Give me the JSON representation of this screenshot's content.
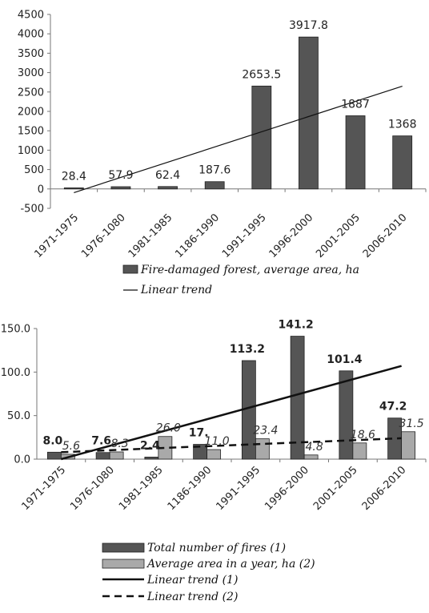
{
  "chart_data": [
    {
      "type": "bar",
      "categories": [
        "1971-1975",
        "1976-1080",
        "1981-1985",
        "1186-1990",
        "1991-1995",
        "1996-2000",
        "2001-2005",
        "2006-2010"
      ],
      "series": [
        {
          "name": "Fire-damaged forest, average area, ha",
          "values": [
            28.4,
            57.9,
            62.4,
            187.6,
            2653.5,
            3917.8,
            1887,
            1368
          ],
          "labels": [
            "28.4",
            "57.9",
            "62.4",
            "187.6",
            "2653.5",
            "3917.8",
            "1887",
            "1368"
          ],
          "color": "#555555"
        }
      ],
      "trend": {
        "name": "Linear trend",
        "from": -95,
        "to": 2650
      },
      "ylim": [
        -500,
        4500
      ],
      "yticks": [
        "-500",
        "0",
        "500",
        "1000",
        "1500",
        "2000",
        "2500",
        "3000",
        "3500",
        "4000",
        "4500"
      ],
      "ytick_values": [
        -500,
        0,
        500,
        1000,
        1500,
        2000,
        2500,
        3000,
        3500,
        4000,
        4500
      ],
      "grid": false,
      "legend_position": "bottom"
    },
    {
      "type": "bar",
      "categories": [
        "1971-1975",
        "1976-1080",
        "1981-1985",
        "1186-1990",
        "1991-1995",
        "1996-2000",
        "2001-2005",
        "2006-2010"
      ],
      "series": [
        {
          "name": "Total number of fires (1)",
          "values": [
            8.0,
            7.6,
            2.4,
            17,
            113.2,
            141.2,
            101.4,
            47.2
          ],
          "labels": [
            "8.0",
            "7.6",
            "2.4",
            "17.",
            "113.2",
            "141.2",
            "101.4",
            "47.2"
          ],
          "color": "#555555"
        },
        {
          "name": "Average area in a year, ha (2)",
          "values": [
            5.6,
            8.3,
            26.0,
            11.0,
            23.4,
            4.8,
            18.6,
            31.5
          ],
          "labels": [
            "5.6",
            "8.3",
            "26.0",
            "11.0",
            "23.4",
            "4.8",
            "18.6",
            "31.5"
          ],
          "color": "#a9a9a9"
        }
      ],
      "trends": [
        {
          "name": "Linear trend (1)",
          "from": 0,
          "to": 107
        },
        {
          "name": "Linear trend (2)",
          "from": 8,
          "to": 24
        }
      ],
      "ylim": [
        0,
        150
      ],
      "yticks": [
        "0.0",
        "50.0",
        "100.0",
        "150.0"
      ],
      "ytick_values": [
        0,
        50,
        100,
        150
      ],
      "grid": false,
      "legend_position": "bottom"
    }
  ]
}
